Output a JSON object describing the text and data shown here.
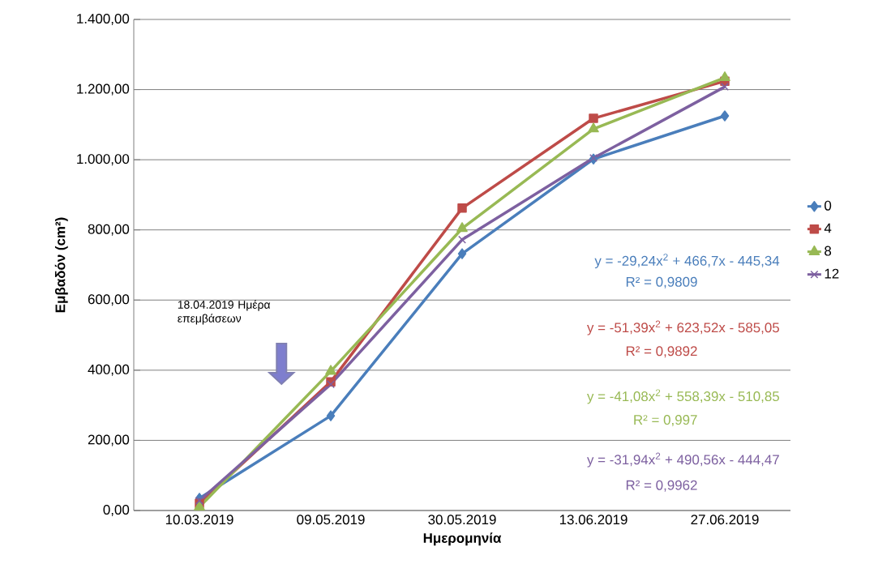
{
  "chart_data": {
    "type": "line",
    "xlabel": "Ημερομηνία",
    "ylabel": "Εμβαδόν (cm²)",
    "categories": [
      "10.03.2019",
      "09.05.2019",
      "30.05.2019",
      "13.06.2019",
      "27.06.2019"
    ],
    "series": [
      {
        "name": "0",
        "color": "#4a7ebb",
        "marker": "diamond",
        "values": [
          35,
          270,
          732,
          1002,
          1125
        ]
      },
      {
        "name": "4",
        "color": "#be4b48",
        "marker": "square",
        "values": [
          20,
          367,
          862,
          1118,
          1224
        ]
      },
      {
        "name": "8",
        "color": "#98b954",
        "marker": "triangle",
        "values": [
          10,
          397,
          804,
          1088,
          1234
        ]
      },
      {
        "name": "12",
        "color": "#7d60a0",
        "marker": "cross",
        "values": [
          28,
          360,
          772,
          1005,
          1208
        ]
      }
    ],
    "ylim": [
      0,
      1400
    ],
    "yticks": [
      {
        "value": 0,
        "label": "0,00"
      },
      {
        "value": 200,
        "label": "200,00"
      },
      {
        "value": 400,
        "label": "400,00"
      },
      {
        "value": 600,
        "label": "600,00"
      },
      {
        "value": 800,
        "label": "800,00"
      },
      {
        "value": 1000,
        "label": "1.000,00"
      },
      {
        "value": 1200,
        "label": "1.200,00"
      },
      {
        "value": 1400,
        "label": "1.400,00"
      }
    ],
    "grid": "y",
    "legend": "right",
    "annotations": [
      "18.04.2019 Ημέρα επεμβάσεων",
      "y = -29,24x$^{2}$ + 466,7x - 445,34",
      "R² = 0,9809",
      "y = -51,39x$^{2}$ + 623,52x - 585,05",
      "R² = 0,9892",
      "y = -41,08x$^{2}$ + 558,39x - 510,85",
      "R² = 0,997",
      "y = -31,94x$^{2}$ + 490,56x - 444,47",
      "R² = 0,9962"
    ]
  }
}
